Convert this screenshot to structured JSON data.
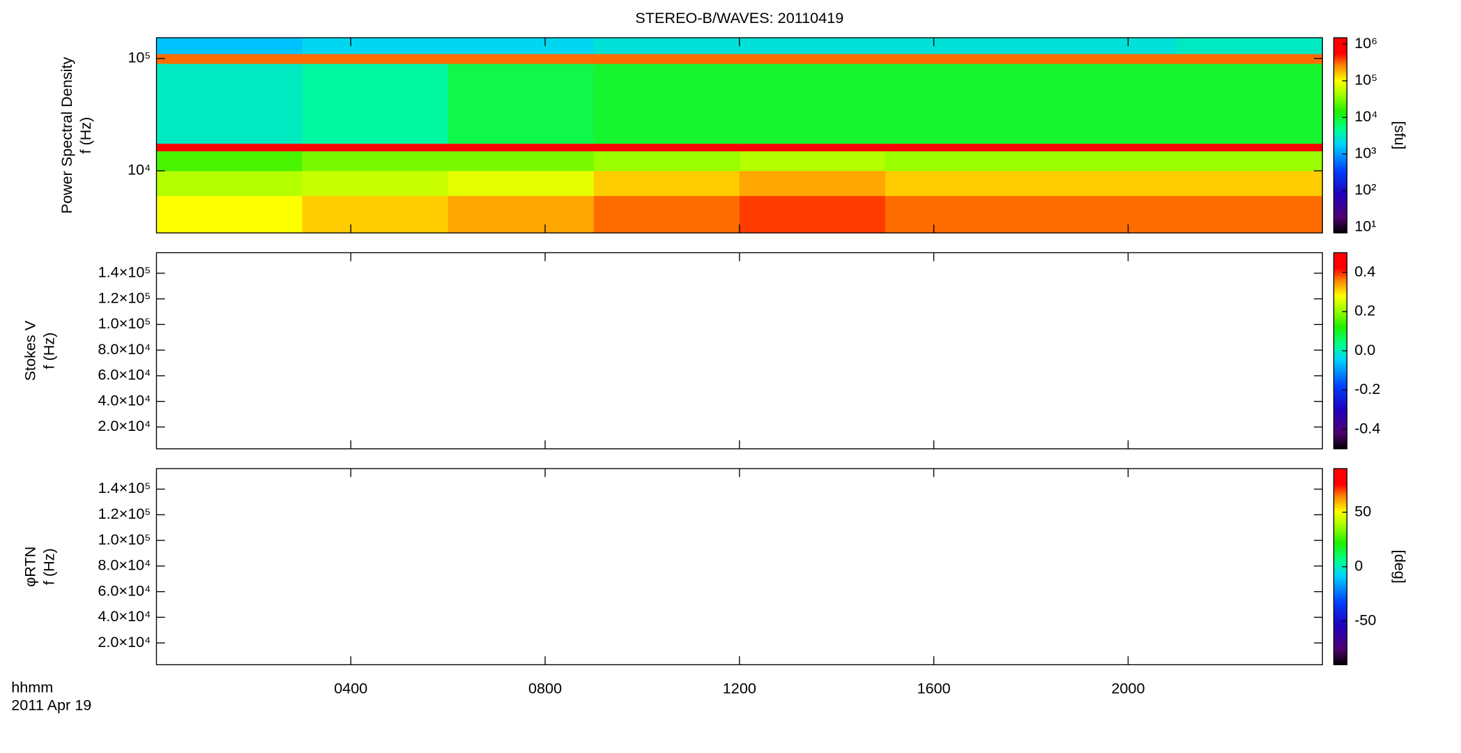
{
  "chart_data": [
    {
      "type": "heatmap",
      "title": "STEREO-B/WAVES: 20110419",
      "ylabel": [
        "Power Spectral Density",
        "f (Hz)"
      ],
      "xlim": [
        0,
        24
      ],
      "xticks": [
        4,
        8,
        12,
        16,
        20
      ],
      "ylim": [
        2800,
        153000
      ],
      "ylog": true,
      "yticks": [
        {
          "value": 10000,
          "label": "10⁴"
        },
        {
          "value": 100000,
          "label": "10⁵"
        }
      ],
      "xbins": [
        0,
        3,
        6,
        9,
        12,
        15,
        18,
        21,
        24
      ],
      "ybins": [
        2800,
        6000,
        10000,
        15000,
        17500,
        90000,
        110000,
        153000
      ],
      "z": [
        [
          100000,
          150000,
          200000,
          300000,
          400000,
          300000,
          300000,
          300000
        ],
        [
          50000,
          60000,
          80000,
          150000,
          200000,
          150000,
          150000,
          150000
        ],
        [
          20000,
          30000,
          30000,
          40000,
          50000,
          40000,
          40000,
          40000
        ],
        [
          800000,
          800000,
          800000,
          900000,
          900000,
          900000,
          900000,
          900000
        ],
        [
          3000,
          4000,
          8000,
          10000,
          10000,
          10000,
          10000,
          10000
        ],
        [
          300000,
          300000,
          300000,
          300000,
          300000,
          300000,
          300000,
          300000
        ],
        [
          1500,
          2000,
          2000,
          2500,
          2500,
          2500,
          2500,
          3000
        ]
      ],
      "colormap": "rainbow",
      "clim": [
        7,
        1500000
      ],
      "clog": true,
      "cticks": [
        {
          "value": 10,
          "label": "10¹"
        },
        {
          "value": 100,
          "label": "10²"
        },
        {
          "value": 1000,
          "label": "10³"
        },
        {
          "value": 10000,
          "label": "10⁴"
        },
        {
          "value": 100000,
          "label": "10⁵"
        },
        {
          "value": 1000000,
          "label": "10⁶"
        }
      ],
      "clabel": "[sfu]"
    },
    {
      "type": "heatmap",
      "ylabel": [
        "Stokes V",
        "f (Hz)"
      ],
      "xlim": [
        0,
        24
      ],
      "xticks": [
        4,
        8,
        12,
        16,
        20
      ],
      "ylim": [
        3000,
        156000
      ],
      "yticks": [
        {
          "value": 20000,
          "label": "2.0×10⁴"
        },
        {
          "value": 40000,
          "label": "4.0×10⁴"
        },
        {
          "value": 60000,
          "label": "6.0×10⁴"
        },
        {
          "value": 80000,
          "label": "8.0×10⁴"
        },
        {
          "value": 100000,
          "label": "1.0×10⁵"
        },
        {
          "value": 120000,
          "label": "1.2×10⁵"
        },
        {
          "value": 140000,
          "label": "1.4×10⁵"
        }
      ],
      "colormap": "rainbow",
      "clim": [
        -0.5,
        0.5
      ],
      "cticks": [
        -0.4,
        -0.2,
        {
          "value": 0,
          "label": "0.0"
        },
        0.2,
        0.4
      ]
    },
    {
      "type": "heatmap",
      "ylabel": [
        "φRTN",
        "f (Hz)"
      ],
      "xlabel": [
        "hhmm",
        "2011 Apr 19"
      ],
      "xlim": [
        0,
        24
      ],
      "xticks": [
        {
          "value": 4,
          "label": "0400"
        },
        {
          "value": 8,
          "label": "0800"
        },
        {
          "value": 12,
          "label": "1200"
        },
        {
          "value": 16,
          "label": "1600"
        },
        {
          "value": 20,
          "label": "2000"
        }
      ],
      "ylim": [
        3000,
        156000
      ],
      "yticks": [
        {
          "value": 20000,
          "label": "2.0×10⁴"
        },
        {
          "value": 40000,
          "label": "4.0×10⁴"
        },
        {
          "value": 60000,
          "label": "6.0×10⁴"
        },
        {
          "value": 80000,
          "label": "8.0×10⁴"
        },
        {
          "value": 100000,
          "label": "1.0×10⁵"
        },
        {
          "value": 120000,
          "label": "1.2×10⁵"
        },
        {
          "value": 140000,
          "label": "1.4×10⁵"
        }
      ],
      "colormap": "rainbow",
      "clim": [
        -90,
        90
      ],
      "cticks": [
        -50,
        0,
        50
      ],
      "clabel": "[deg]"
    }
  ]
}
